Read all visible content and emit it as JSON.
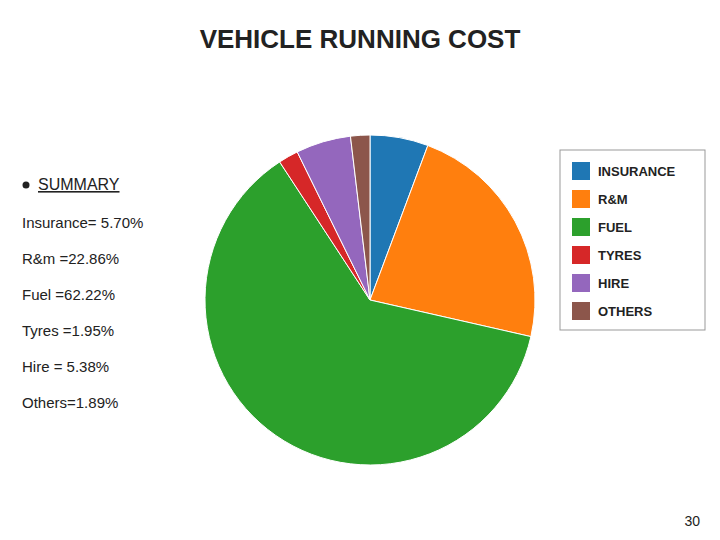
{
  "chart_data": {
    "type": "pie",
    "title": "VEHICLE RUNNING COST",
    "categories": [
      "INSURANCE",
      "R&M",
      "FUEL",
      "TYRES",
      "HIRE",
      "OTHERS"
    ],
    "values": [
      5.7,
      22.86,
      62.22,
      1.95,
      5.38,
      1.89
    ],
    "legend": "right",
    "annotations": [
      "SUMMARY",
      "Insurance= 5.70%",
      "R&m =22.86%",
      "Fuel =62.22%",
      "Tyres =1.95%",
      "Hire = 5.38%",
      "Others=1.89%",
      "30"
    ]
  }
}
